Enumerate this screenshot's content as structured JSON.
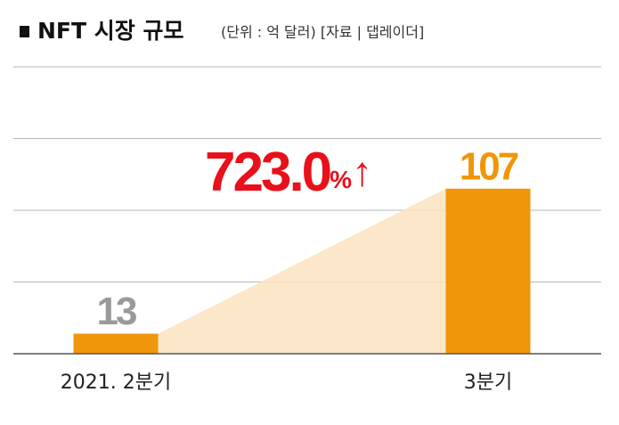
{
  "chart_data": {
    "type": "bar",
    "title": "NFT 시장 규모",
    "subtitle": "(단위 : 억 달러) [자료 | 댑레이더]",
    "categories": [
      "2021. 2분기",
      "3분기"
    ],
    "values": [
      13,
      107
    ],
    "value_colors": [
      "#9a9a9a",
      "#f0960a"
    ],
    "color": "#f0960a",
    "ylim": [
      0,
      186
    ],
    "annotation": {
      "number": "723.0",
      "unit": "%",
      "arrow": "↑",
      "color": "#e8101a"
    }
  }
}
